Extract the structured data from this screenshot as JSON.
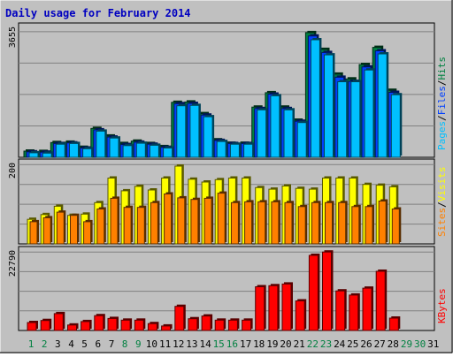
{
  "title": "Daily usage for February 2014",
  "colors": {
    "page_bg": "#c0c0c0",
    "plot_bg": "#c0c0c0",
    "grid": "#808080",
    "title": "#0000c0",
    "hits": "#008040",
    "files": "#0040ff",
    "pages": "#00c0ff",
    "visits": "#ffff00",
    "sites": "#ff8000",
    "kbytes": "#ff0000",
    "weekday_label": "#000000",
    "weekend_label": "#008040"
  },
  "chart_data": [
    {
      "type": "bar",
      "name": "hits-files-pages",
      "ymax_label": "3655",
      "ylim": [
        0,
        3655
      ],
      "grid": true,
      "legend": [
        "Pages",
        "/",
        "Files",
        "/",
        "Hits"
      ],
      "series": [
        {
          "name": "Hits",
          "values": [
            180,
            170,
            430,
            440,
            290,
            840,
            620,
            400,
            470,
            400,
            310,
            1600,
            1610,
            1270,
            510,
            410,
            410,
            1460,
            1880,
            1460,
            1080,
            3630,
            3140,
            2420,
            2280,
            2700,
            3200,
            1950
          ]
        },
        {
          "name": "Files",
          "values": [
            160,
            150,
            400,
            420,
            270,
            800,
            590,
            370,
            440,
            380,
            290,
            1560,
            1570,
            1230,
            490,
            400,
            400,
            1420,
            1840,
            1420,
            1050,
            3530,
            3050,
            2330,
            2210,
            2630,
            3100,
            1890
          ]
        },
        {
          "name": "Pages",
          "values": [
            130,
            120,
            380,
            400,
            250,
            760,
            560,
            340,
            410,
            350,
            270,
            1500,
            1510,
            1180,
            460,
            380,
            380,
            1380,
            1790,
            1380,
            1010,
            3420,
            2980,
            2200,
            2200,
            2540,
            3010,
            1820
          ]
        }
      ]
    },
    {
      "type": "bar",
      "name": "visits-sites",
      "ymax_label": "200",
      "ylim": [
        0,
        200
      ],
      "grid": true,
      "legend": [
        "Sites",
        "/",
        "Visits"
      ],
      "series": [
        {
          "name": "Visits",
          "values": [
            62,
            74,
            95,
            72,
            75,
            104,
            166,
            134,
            145,
            136,
            166,
            196,
            163,
            156,
            162,
            166,
            166,
            142,
            138,
            146,
            140,
            138,
            166,
            166,
            166,
            150,
            148,
            144
          ]
        },
        {
          "name": "Sites",
          "values": [
            56,
            66,
            80,
            72,
            56,
            88,
            115,
            92,
            92,
            104,
            126,
            116,
            112,
            115,
            128,
            104,
            106,
            106,
            106,
            104,
            94,
            104,
            104,
            104,
            94,
            94,
            108,
            88
          ]
        }
      ]
    },
    {
      "type": "bar",
      "name": "kbytes",
      "ymax_label": "22790",
      "ylim": [
        0,
        22790
      ],
      "grid": true,
      "legend": [
        "KBytes"
      ],
      "series": [
        {
          "name": "KBytes",
          "values": [
            2300,
            2900,
            4900,
            1600,
            2600,
            4300,
            3500,
            3000,
            3000,
            2000,
            1300,
            7000,
            3400,
            4200,
            3000,
            3000,
            3000,
            12700,
            13000,
            13500,
            8600,
            21800,
            22790,
            11500,
            10300,
            12300,
            17200,
            3600
          ]
        }
      ]
    }
  ],
  "x_axis": {
    "labels": [
      "1",
      "2",
      "3",
      "4",
      "5",
      "6",
      "7",
      "8",
      "9",
      "10",
      "11",
      "12",
      "13",
      "14",
      "15",
      "16",
      "17",
      "18",
      "19",
      "20",
      "21",
      "22",
      "23",
      "24",
      "25",
      "26",
      "27",
      "28",
      "29",
      "30",
      "31"
    ],
    "weekend": [
      1,
      2,
      8,
      9,
      15,
      16,
      22,
      23,
      29,
      30
    ]
  }
}
